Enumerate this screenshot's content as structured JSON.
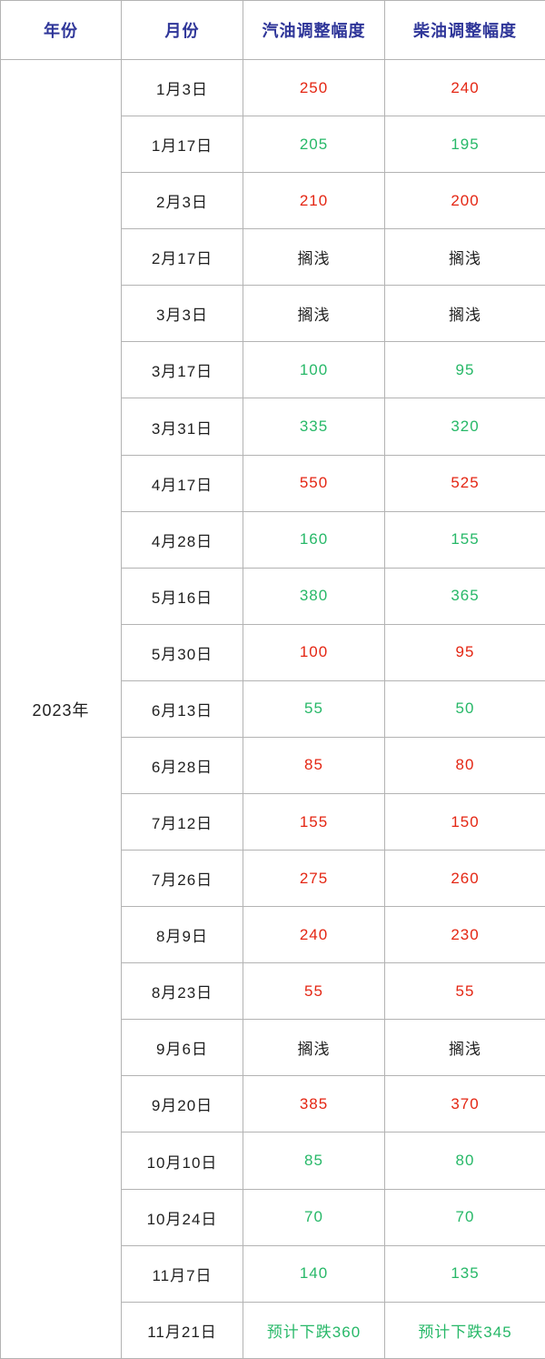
{
  "chart_data": {
    "type": "table",
    "columns": [
      "年份",
      "月份",
      "汽油调整幅度",
      "柴油调整幅度"
    ],
    "year_label": "2023年",
    "rows": [
      {
        "date": "1月3日",
        "gasoline": "250",
        "diesel": "240",
        "trend": "up"
      },
      {
        "date": "1月17日",
        "gasoline": "205",
        "diesel": "195",
        "trend": "down"
      },
      {
        "date": "2月3日",
        "gasoline": "210",
        "diesel": "200",
        "trend": "up"
      },
      {
        "date": "2月17日",
        "gasoline": "搁浅",
        "diesel": "搁浅",
        "trend": "neutral"
      },
      {
        "date": "3月3日",
        "gasoline": "搁浅",
        "diesel": "搁浅",
        "trend": "neutral"
      },
      {
        "date": "3月17日",
        "gasoline": "100",
        "diesel": "95",
        "trend": "down"
      },
      {
        "date": "3月31日",
        "gasoline": "335",
        "diesel": "320",
        "trend": "down"
      },
      {
        "date": "4月17日",
        "gasoline": "550",
        "diesel": "525",
        "trend": "up"
      },
      {
        "date": "4月28日",
        "gasoline": "160",
        "diesel": "155",
        "trend": "down"
      },
      {
        "date": "5月16日",
        "gasoline": "380",
        "diesel": "365",
        "trend": "down"
      },
      {
        "date": "5月30日",
        "gasoline": "100",
        "diesel": "95",
        "trend": "up"
      },
      {
        "date": "6月13日",
        "gasoline": "55",
        "diesel": "50",
        "trend": "down"
      },
      {
        "date": "6月28日",
        "gasoline": "85",
        "diesel": "80",
        "trend": "up"
      },
      {
        "date": "7月12日",
        "gasoline": "155",
        "diesel": "150",
        "trend": "up"
      },
      {
        "date": "7月26日",
        "gasoline": "275",
        "diesel": "260",
        "trend": "up"
      },
      {
        "date": "8月9日",
        "gasoline": "240",
        "diesel": "230",
        "trend": "up"
      },
      {
        "date": "8月23日",
        "gasoline": "55",
        "diesel": "55",
        "trend": "up"
      },
      {
        "date": "9月6日",
        "gasoline": "搁浅",
        "diesel": "搁浅",
        "trend": "neutral"
      },
      {
        "date": "9月20日",
        "gasoline": "385",
        "diesel": "370",
        "trend": "up"
      },
      {
        "date": "10月10日",
        "gasoline": "85",
        "diesel": "80",
        "trend": "down"
      },
      {
        "date": "10月24日",
        "gasoline": "70",
        "diesel": "70",
        "trend": "down"
      },
      {
        "date": "11月7日",
        "gasoline": "140",
        "diesel": "135",
        "trend": "down"
      },
      {
        "date": "11月21日",
        "gasoline": "预计下跌360",
        "diesel": "预计下跌345",
        "trend": "down"
      }
    ]
  },
  "colors": {
    "header_text": "#2f3699",
    "up": "#e42613",
    "down": "#27b868",
    "neutral": "#1f1f1f",
    "border": "#b3b3b3"
  }
}
